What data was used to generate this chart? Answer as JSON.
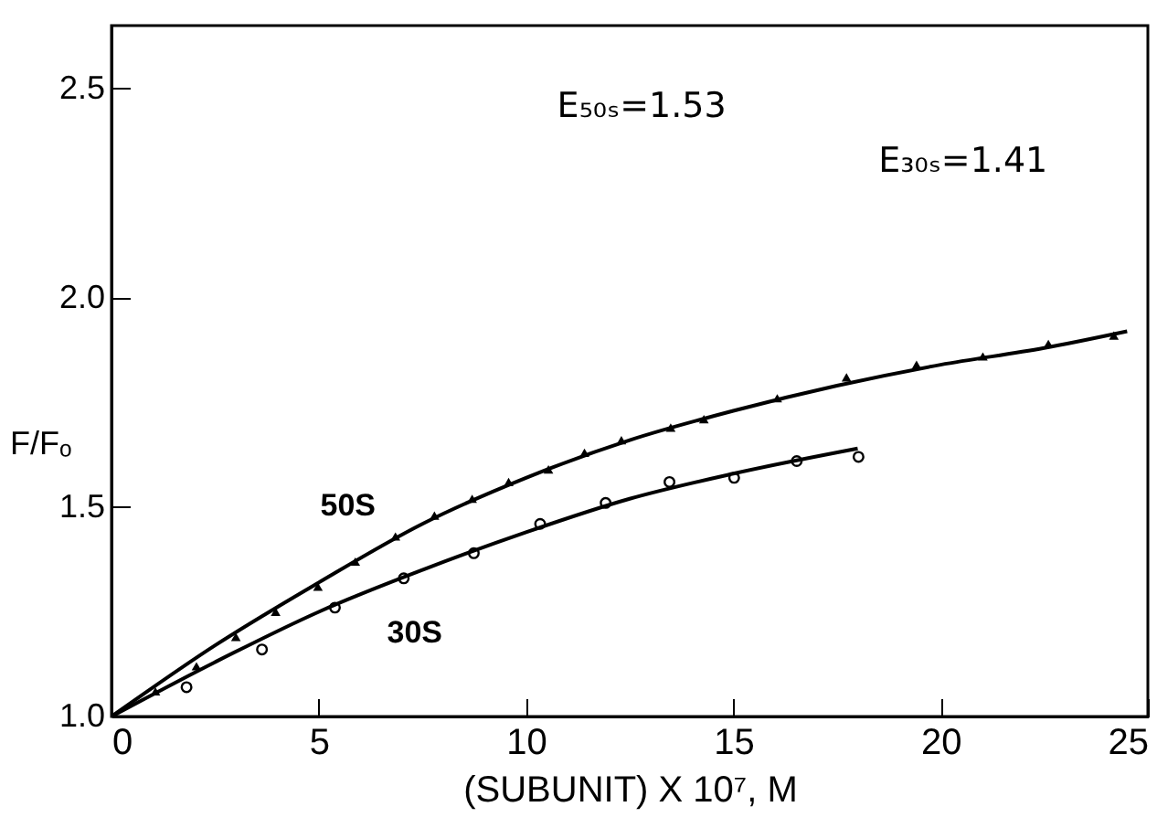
{
  "chart_data": {
    "type": "scatter",
    "xlabel": "(SUBUNIT) X 10⁷, M",
    "ylabel": "F/Fₒ",
    "xlim": [
      0,
      25
    ],
    "xticks": [
      0,
      5,
      10,
      15,
      20,
      25
    ],
    "ylim": [
      1.0,
      2.65
    ],
    "yticks": [
      {
        "value": 1.0,
        "label": "1.0"
      },
      {
        "value": 1.5,
        "label": "1.5"
      },
      {
        "value": 2.0,
        "label": "2.0"
      },
      {
        "value": 2.5,
        "label": "2.5"
      }
    ],
    "grid": false,
    "annotations": [
      "E₅₀ₛ=1.53",
      "E₃₀ₛ=1.41"
    ],
    "series": [
      {
        "name": "50S",
        "marker": "triangle",
        "color": "#000000",
        "x": [
          1.06,
          2.05,
          3.0,
          3.96,
          4.98,
          5.88,
          6.85,
          7.79,
          8.7,
          9.58,
          10.54,
          11.41,
          12.3,
          13.49,
          14.29,
          16.06,
          17.73,
          19.42,
          21.02,
          22.6,
          24.18
        ],
        "values": [
          1.06,
          1.12,
          1.19,
          1.25,
          1.31,
          1.37,
          1.43,
          1.48,
          1.52,
          1.56,
          1.59,
          1.63,
          1.66,
          1.69,
          1.71,
          1.76,
          1.81,
          1.84,
          1.86,
          1.89,
          1.91
        ]
      },
      {
        "name": "30S",
        "marker": "circle",
        "color": "#000000",
        "x": [
          1.81,
          3.63,
          5.39,
          7.05,
          8.74,
          10.34,
          11.92,
          13.46,
          15.02,
          16.53,
          18.02
        ],
        "values": [
          1.07,
          1.16,
          1.26,
          1.33,
          1.39,
          1.46,
          1.51,
          1.56,
          1.57,
          1.61,
          1.62
        ]
      },
      {
        "type": "line",
        "marker": "none",
        "color": "#000000",
        "x": [
          0,
          2.5,
          5,
          7.5,
          10,
          12.5,
          15,
          17.5,
          20,
          22.5,
          24.5
        ],
        "values": [
          1.0,
          1.17,
          1.32,
          1.46,
          1.57,
          1.66,
          1.73,
          1.79,
          1.84,
          1.88,
          1.92
        ]
      },
      {
        "type": "line",
        "marker": "none",
        "color": "#000000",
        "x": [
          0,
          2.5,
          5,
          7.5,
          10,
          12.5,
          15,
          18
        ],
        "values": [
          1.0,
          1.13,
          1.25,
          1.35,
          1.44,
          1.52,
          1.58,
          1.64
        ]
      }
    ]
  }
}
